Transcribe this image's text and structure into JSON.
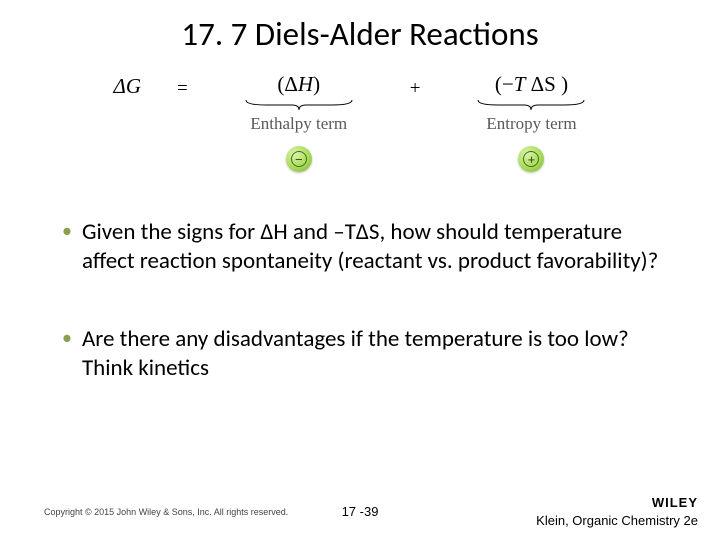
{
  "title": "17. 7 Diels-Alder Reactions",
  "equation": {
    "lhs": "Δ<i>G</i>",
    "eq": "=",
    "term1_expr": "(Δ<i>H</i>)",
    "term1_label": "Enthalpy term",
    "term1_sign": "−",
    "plus": "+",
    "term2_expr": "(−<i>T</i> ΔS )",
    "term2_label": "Entropy term",
    "term2_sign": "+"
  },
  "bullets": [
    "Given the signs for ΔH and –TΔS, how should temperature affect reaction spontaneity (reactant vs. product favorability)?",
    "Are there any disadvantages if the temperature is too low? Think kinetics"
  ],
  "footer": {
    "copyright": "Copyright © 2015 John Wiley & Sons, Inc. All rights reserved.",
    "page": "17 -39",
    "logo": "WILEY",
    "book": "Klein, Organic Chemistry 2e"
  },
  "colors": {
    "bullet_dot": "#8aa050",
    "label_gray": "#595959"
  }
}
